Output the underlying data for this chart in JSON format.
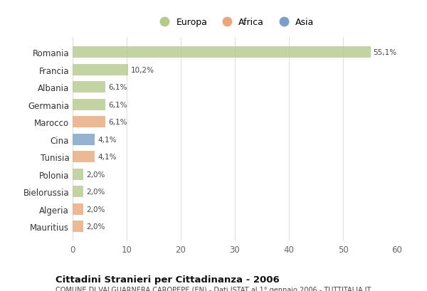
{
  "categories": [
    "Romania",
    "Francia",
    "Albania",
    "Germania",
    "Marocco",
    "Cina",
    "Tunisia",
    "Polonia",
    "Bielorussia",
    "Algeria",
    "Mauritius"
  ],
  "values": [
    55.1,
    10.2,
    6.1,
    6.1,
    6.1,
    4.1,
    4.1,
    2.0,
    2.0,
    2.0,
    2.0
  ],
  "labels": [
    "55,1%",
    "10,2%",
    "6,1%",
    "6,1%",
    "6,1%",
    "4,1%",
    "4,1%",
    "2,0%",
    "2,0%",
    "2,0%",
    "2,0%"
  ],
  "colors": [
    "#b5c98e",
    "#b5c98e",
    "#b5c98e",
    "#b5c98e",
    "#e8a87c",
    "#7b9fc7",
    "#e8a87c",
    "#b5c98e",
    "#b5c98e",
    "#e8a87c",
    "#e8a87c"
  ],
  "legend_labels": [
    "Europa",
    "Africa",
    "Asia"
  ],
  "legend_colors": [
    "#b5c98e",
    "#e8a87c",
    "#7b9fc7"
  ],
  "title": "Cittadini Stranieri per Cittadinanza - 2006",
  "subtitle": "COMUNE DI VALGUARNERA CAROPEPE (EN) - Dati ISTAT al 1° gennaio 2006 - TUTTITALIA.IT",
  "xlim": [
    0,
    60
  ],
  "xticks": [
    0,
    10,
    20,
    30,
    40,
    50,
    60
  ],
  "background_color": "#ffffff",
  "grid_color": "#e0e0e0",
  "bar_height": 0.65
}
